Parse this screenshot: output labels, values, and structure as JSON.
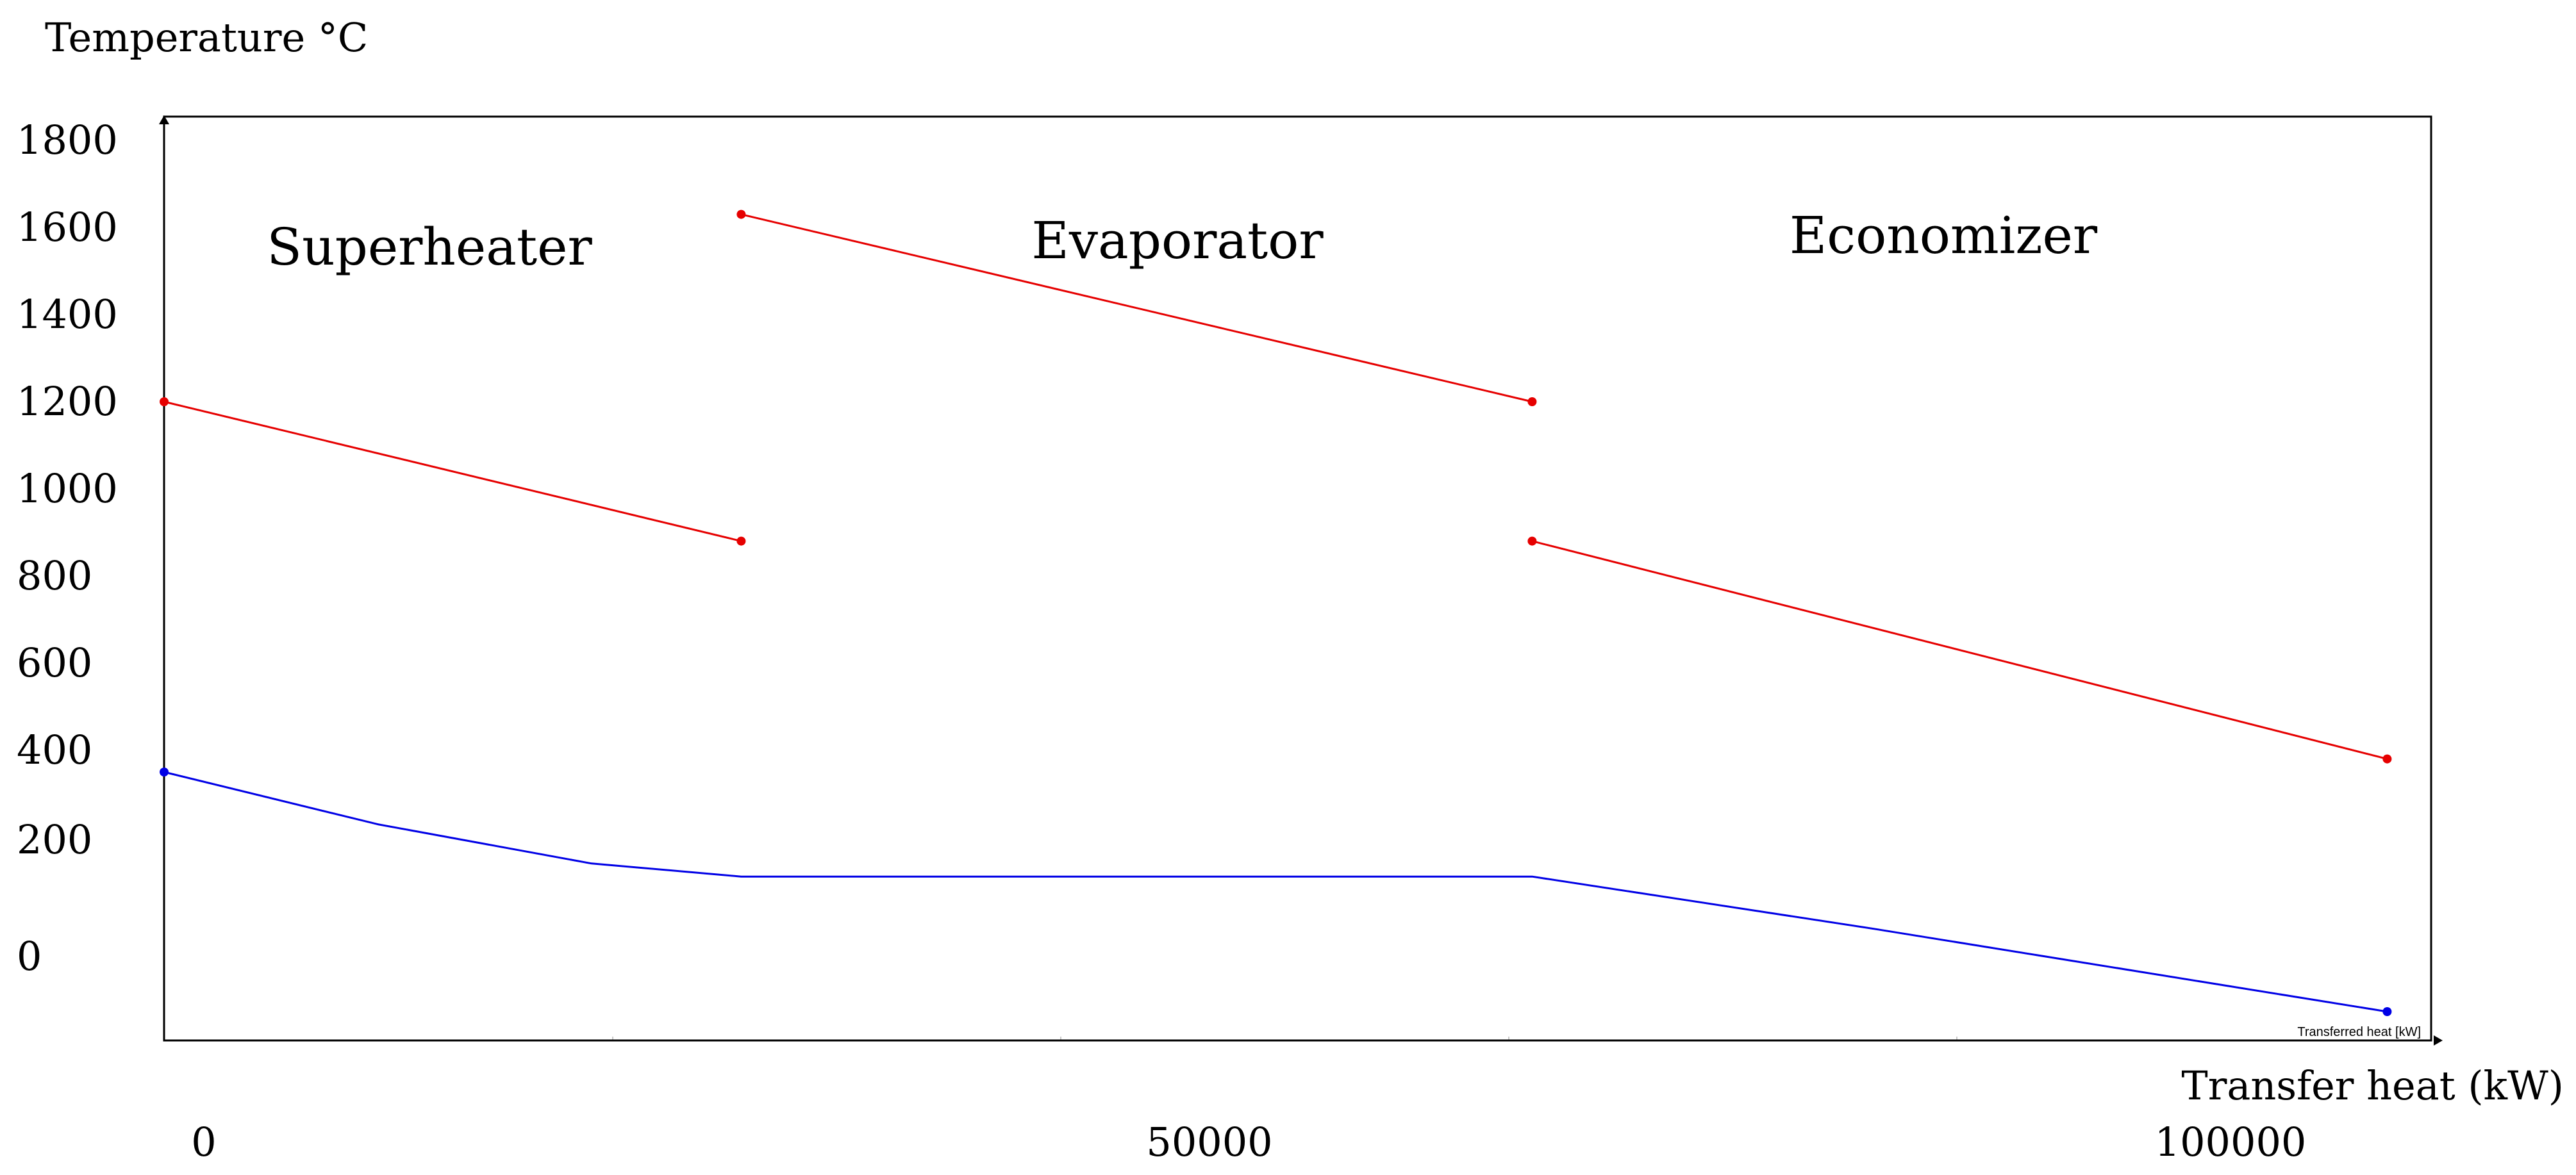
{
  "chart_data": {
    "type": "line",
    "ylabel": "Temperature °C",
    "xlabel": "Transfer heat (kW)",
    "inner_xlabel": "Transferred heat [kW]",
    "y_ticks": [
      "1800",
      "1600",
      "1400",
      "1200",
      "1000",
      "800",
      "600",
      "400",
      "200",
      "0"
    ],
    "x_ticks": [
      "0",
      "50000",
      "100000"
    ],
    "section_labels": [
      "Superheater",
      "Evaporator",
      "Economizer"
    ],
    "colors": {
      "hot_gas": "#e60000",
      "steam_water": "#0000e6",
      "frame": "#000000",
      "grid": "#c8c8c8"
    },
    "series": [
      {
        "color": "hot_gas",
        "segments": [
          [
            [
              0,
              1250
            ],
            [
              27000,
              930
            ]
          ],
          [
            [
              27000,
              1680
            ],
            [
              64000,
              1250
            ]
          ],
          [
            [
              64000,
              930
            ],
            [
              104000,
              430
            ]
          ]
        ]
      },
      {
        "color": "steam_water",
        "segments": [
          [
            [
              0,
              400
            ],
            [
              10000,
              280
            ],
            [
              20000,
              190
            ],
            [
              27000,
              160
            ],
            [
              64000,
              160
            ],
            [
              80000,
              40
            ],
            [
              104000,
              -150
            ]
          ]
        ]
      }
    ]
  }
}
